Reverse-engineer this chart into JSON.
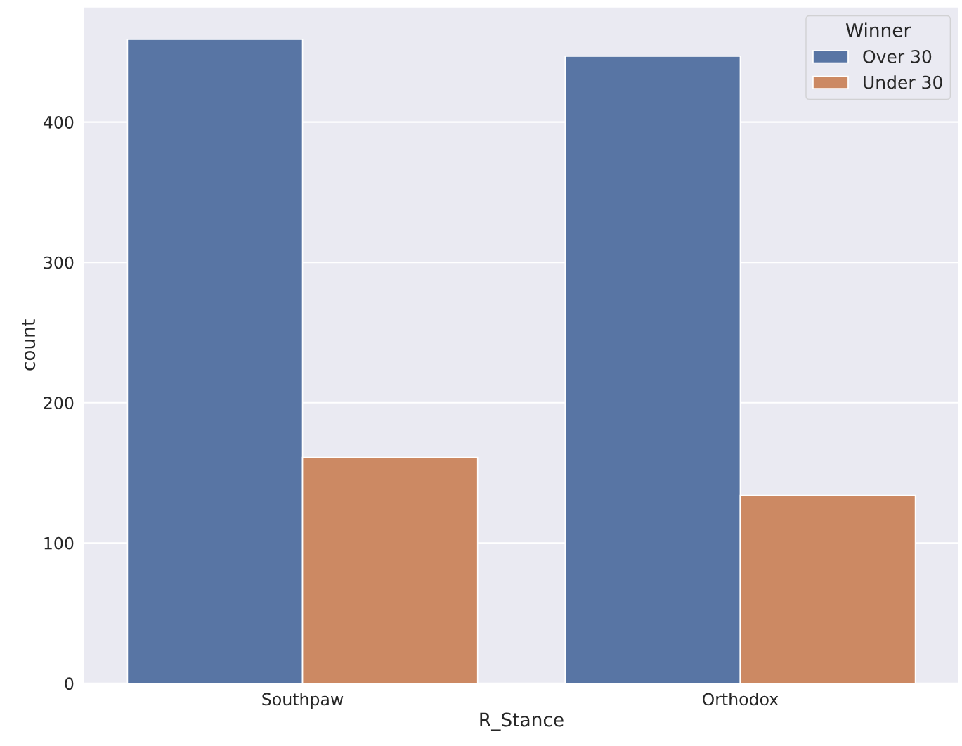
{
  "chart_data": {
    "type": "bar",
    "xlabel": "R_Stance",
    "ylabel": "count",
    "legend_title": "Winner",
    "categories": [
      "Southpaw",
      "Orthodox"
    ],
    "series": [
      {
        "name": "Over 30",
        "color": "#5875a4",
        "values": [
          459,
          447
        ]
      },
      {
        "name": "Under 30",
        "color": "#cc8963",
        "values": [
          161,
          134
        ]
      }
    ],
    "ylim": [
      0,
      482
    ],
    "yticks": [
      0,
      100,
      200,
      300,
      400
    ],
    "grid": "y",
    "legend": "top right"
  }
}
